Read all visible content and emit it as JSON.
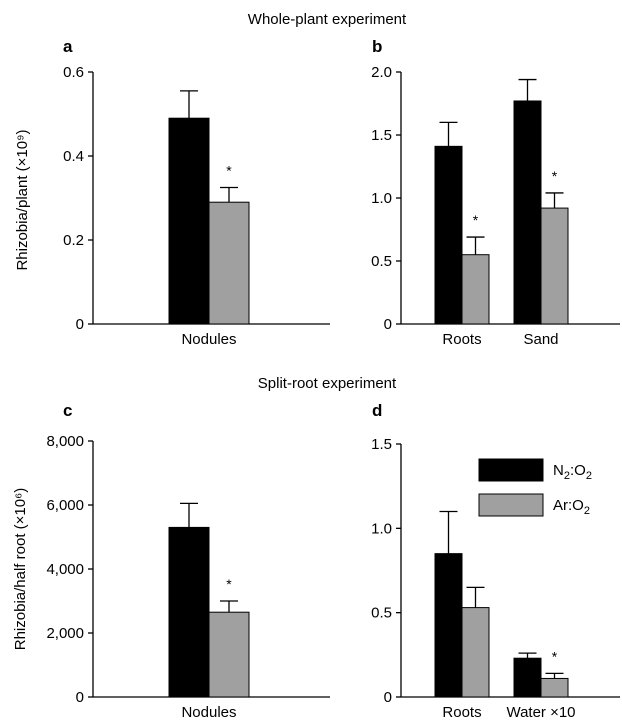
{
  "figure": {
    "section_titles": [
      "Whole-plant experiment",
      "Split-root experiment"
    ],
    "legend": [
      {
        "label": "N2:O2",
        "color": "#000000"
      },
      {
        "label": "Ar:O2",
        "color": "#a0a0a0"
      }
    ],
    "significance_marker": "*"
  },
  "chart_data": [
    {
      "panel": "a",
      "type": "bar",
      "ylabel": "Rhizobia/plant (×10⁹)",
      "ylim": [
        0,
        0.6
      ],
      "yticks": [
        0,
        0.2,
        0.4,
        0.6
      ],
      "ytick_labels": [
        "0",
        "0.2",
        "0.4",
        "0.6"
      ],
      "categories": [
        "Nodules"
      ],
      "series": [
        {
          "name": "N2:O2",
          "values": [
            0.49
          ],
          "errors": [
            0.065
          ]
        },
        {
          "name": "Ar:O2",
          "values": [
            0.29
          ],
          "errors": [
            0.035
          ]
        }
      ],
      "significant": [
        true
      ]
    },
    {
      "panel": "b",
      "type": "bar",
      "ylabel": "",
      "ylim": [
        0,
        2.0
      ],
      "yticks": [
        0,
        0.5,
        1.0,
        1.5,
        2.0
      ],
      "ytick_labels": [
        "0",
        "0.5",
        "1.0",
        "1.5",
        "2.0"
      ],
      "categories": [
        "Roots",
        "Sand"
      ],
      "series": [
        {
          "name": "N2:O2",
          "values": [
            1.41,
            1.77
          ],
          "errors": [
            0.19,
            0.17
          ]
        },
        {
          "name": "Ar:O2",
          "values": [
            0.55,
            0.92
          ],
          "errors": [
            0.14,
            0.12
          ]
        }
      ],
      "significant": [
        true,
        true
      ]
    },
    {
      "panel": "c",
      "type": "bar",
      "ylabel": "Rhizobia/half root (×10⁶)",
      "ylim": [
        0,
        8000
      ],
      "yticks": [
        0,
        2000,
        4000,
        6000,
        8000
      ],
      "ytick_labels": [
        "0",
        "2,000",
        "4,000",
        "6,000",
        "8,000"
      ],
      "categories": [
        "Nodules"
      ],
      "series": [
        {
          "name": "N2:O2",
          "values": [
            5300
          ],
          "errors": [
            750
          ]
        },
        {
          "name": "Ar:O2",
          "values": [
            2650
          ],
          "errors": [
            350
          ]
        }
      ],
      "significant": [
        true
      ]
    },
    {
      "panel": "d",
      "type": "bar",
      "ylabel": "",
      "ylim": [
        0,
        1.5
      ],
      "yticks": [
        0,
        0.5,
        1.0,
        1.5
      ],
      "ytick_labels": [
        "0",
        "0.5",
        "1.0",
        "1.5"
      ],
      "categories": [
        "Roots",
        "Water ×10"
      ],
      "series": [
        {
          "name": "N2:O2",
          "values": [
            0.85,
            0.23
          ],
          "errors": [
            0.25,
            0.03
          ]
        },
        {
          "name": "Ar:O2",
          "values": [
            0.53,
            0.11
          ],
          "errors": [
            0.12,
            0.03
          ]
        }
      ],
      "significant": [
        false,
        true
      ]
    }
  ]
}
